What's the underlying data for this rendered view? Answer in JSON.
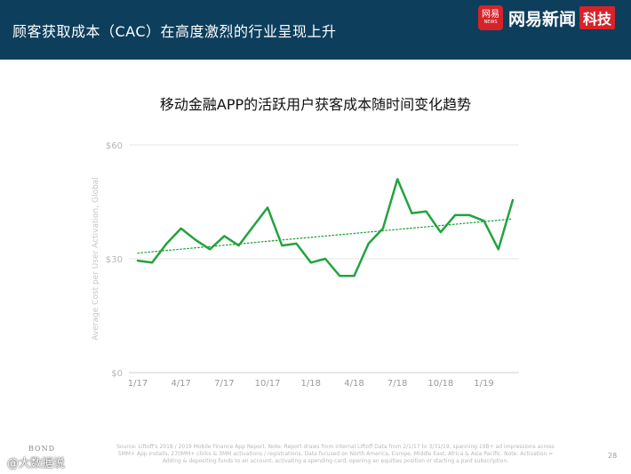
{
  "header": {
    "title": "顾客获取成本（CAC）在高度激烈的行业呈现上升",
    "brand_logo_text": "网易",
    "brand_logo_sub": "NEWS",
    "brand_name": "网易新闻",
    "brand_tag": "科技"
  },
  "chart_data": {
    "type": "line",
    "title": "移动金融APP的活跃用户获客成本随时间变化趋势",
    "ylabel": "Average Cost per User Activation, Global",
    "y_ticks": [
      "$60",
      "$30",
      "$0"
    ],
    "y_tick_values": [
      60,
      30,
      0
    ],
    "ylim": [
      0,
      60
    ],
    "x_ticks": [
      "1/17",
      "4/17",
      "7/17",
      "10/17",
      "1/18",
      "4/18",
      "7/18",
      "10/18",
      "1/19"
    ],
    "grid": true,
    "series": [
      {
        "style": "solid",
        "color": "#22a33f",
        "x": [
          "1/17",
          "2/17",
          "3/17",
          "4/17",
          "5/17",
          "6/17",
          "7/17",
          "8/17",
          "9/17",
          "10/17",
          "11/17",
          "12/17",
          "1/18",
          "2/18",
          "3/18",
          "4/18",
          "5/18",
          "6/18",
          "7/18",
          "8/18",
          "9/18",
          "10/18",
          "11/18",
          "12/18",
          "1/19",
          "2/19",
          "3/19"
        ],
        "values": [
          29.5,
          29,
          34,
          38,
          35,
          32.5,
          36,
          33.5,
          38.5,
          43.5,
          33.5,
          34,
          29,
          30,
          25.5,
          25.5,
          34,
          38,
          51,
          42,
          42.5,
          37,
          41.5,
          41.5,
          40,
          32.5,
          45.5
        ]
      },
      {
        "style": "dotted",
        "color": "#22a33f",
        "x": [
          "1/17",
          "3/19"
        ],
        "values": [
          31.5,
          40.5
        ]
      }
    ]
  },
  "footer": {
    "source": "Source: Liftoff's 2018 / 2019 Mobile Finance App Report. Note: Report draws from internal Liftoff Data from 2/1/17 to 3/31/19, spanning 19B+ ad impressions across 5MM+ App installs, 270MM+ clicks & 3MM activations / registrations. Data focused on North America, Europe, Middle East, Africa & Asia Pacific. Note: Activation = Adding & depositing funds to an account, activating a spending card, opening an equities position or starting a paid subscription.",
    "page_number": "28",
    "bond_logo": "BOND",
    "watermark": "@大数据说"
  }
}
